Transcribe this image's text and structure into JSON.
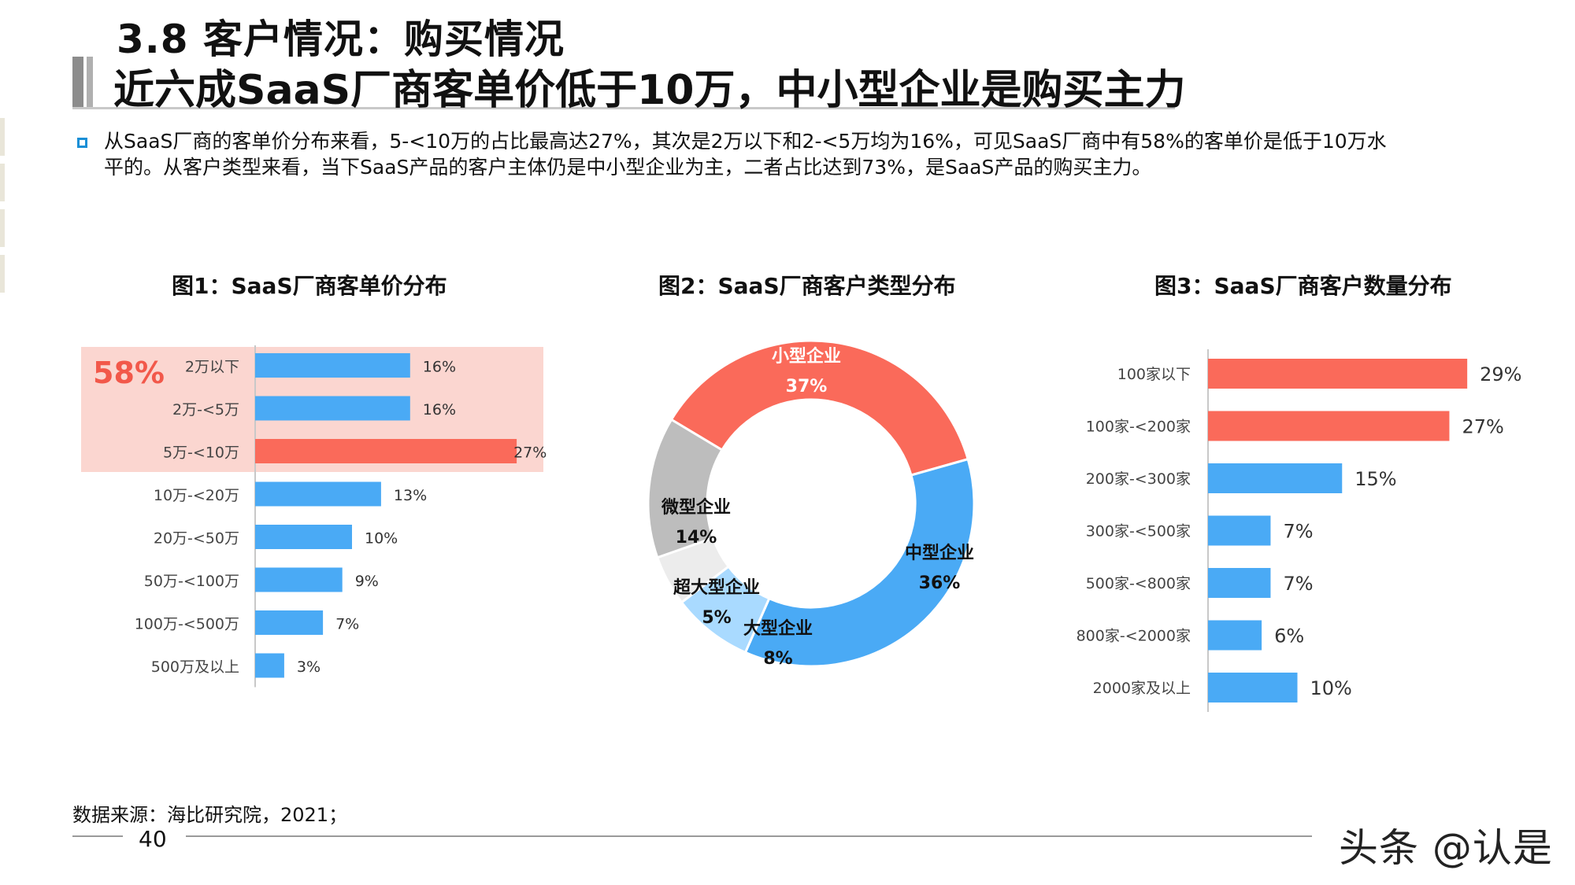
{
  "header": {
    "title": "3.8 客户情况：购买情况",
    "subtitle": "近六成SaaS厂商客单价低于10万，中小型企业是购买主力"
  },
  "summary": {
    "line1": "从SaaS厂商的客单价分布来看，5-<10万的占比最高达27%，其次是2万以下和2-<5万均为16%，可见SaaS厂商中有58%的客单价是低于10万水",
    "line2": "平的。从客户类型来看，当下SaaS产品的客户主体仍是中小型企业为主，二者占比达到73%，是SaaS产品的购买主力。"
  },
  "colors": {
    "blue": "#4aaaf5",
    "red": "#fa6a5a",
    "gray": "#bdbdbd",
    "light_gray": "#ececec",
    "light_blue": "#a9daff",
    "highlight": "#fbd6d0"
  },
  "chart_data": [
    {
      "type": "bar",
      "title": "图1：SaaS厂商客单价分布",
      "orientation": "horizontal",
      "categories": [
        "2万以下",
        "2万-<5万",
        "5万-<10万",
        "10万-<20万",
        "20万-<50万",
        "50万-<100万",
        "100万-<500万",
        "500万及以上"
      ],
      "values": [
        16,
        16,
        27,
        13,
        10,
        9,
        7,
        3
      ],
      "value_labels": [
        "16%",
        "16%",
        "27%",
        "13%",
        "10%",
        "9%",
        "7%",
        "3%"
      ],
      "colors": [
        "#4aaaf5",
        "#4aaaf5",
        "#fa6a5a",
        "#4aaaf5",
        "#4aaaf5",
        "#4aaaf5",
        "#4aaaf5",
        "#4aaaf5"
      ],
      "highlight": {
        "label": "58%",
        "rows": [
          0,
          1,
          2
        ]
      },
      "xlim": [
        0,
        30
      ]
    },
    {
      "type": "pie",
      "title": "图2：SaaS厂商客户类型分布",
      "donut": true,
      "slices": [
        {
          "name": "小型企业",
          "value": 37,
          "label": "37%",
          "color": "#fa6a5a"
        },
        {
          "name": "中型企业",
          "value": 36,
          "label": "36%",
          "color": "#4aaaf5"
        },
        {
          "name": "大型企业",
          "value": 8,
          "label": "8%",
          "color": "#a9daff"
        },
        {
          "name": "超大型企业",
          "value": 5,
          "label": "5%",
          "color": "#ececec"
        },
        {
          "name": "微型企业",
          "value": 14,
          "label": "14%",
          "color": "#bdbdbd"
        }
      ]
    },
    {
      "type": "bar",
      "title": "图3：SaaS厂商客户数量分布",
      "orientation": "horizontal",
      "categories": [
        "100家以下",
        "100家-<200家",
        "200家-<300家",
        "300家-<500家",
        "500家-<800家",
        "800家-<2000家",
        "2000家及以上"
      ],
      "values": [
        29,
        27,
        15,
        7,
        7,
        6,
        10
      ],
      "value_labels": [
        "29%",
        "27%",
        "15%",
        "7%",
        "7%",
        "6%",
        "10%"
      ],
      "colors": [
        "#fa6a5a",
        "#fa6a5a",
        "#4aaaf5",
        "#4aaaf5",
        "#4aaaf5",
        "#4aaaf5",
        "#4aaaf5"
      ],
      "xlim": [
        0,
        30
      ]
    }
  ],
  "footer": {
    "source": "数据来源：海比研究院，2021；",
    "page": "40",
    "brand": "头条 @认是"
  }
}
